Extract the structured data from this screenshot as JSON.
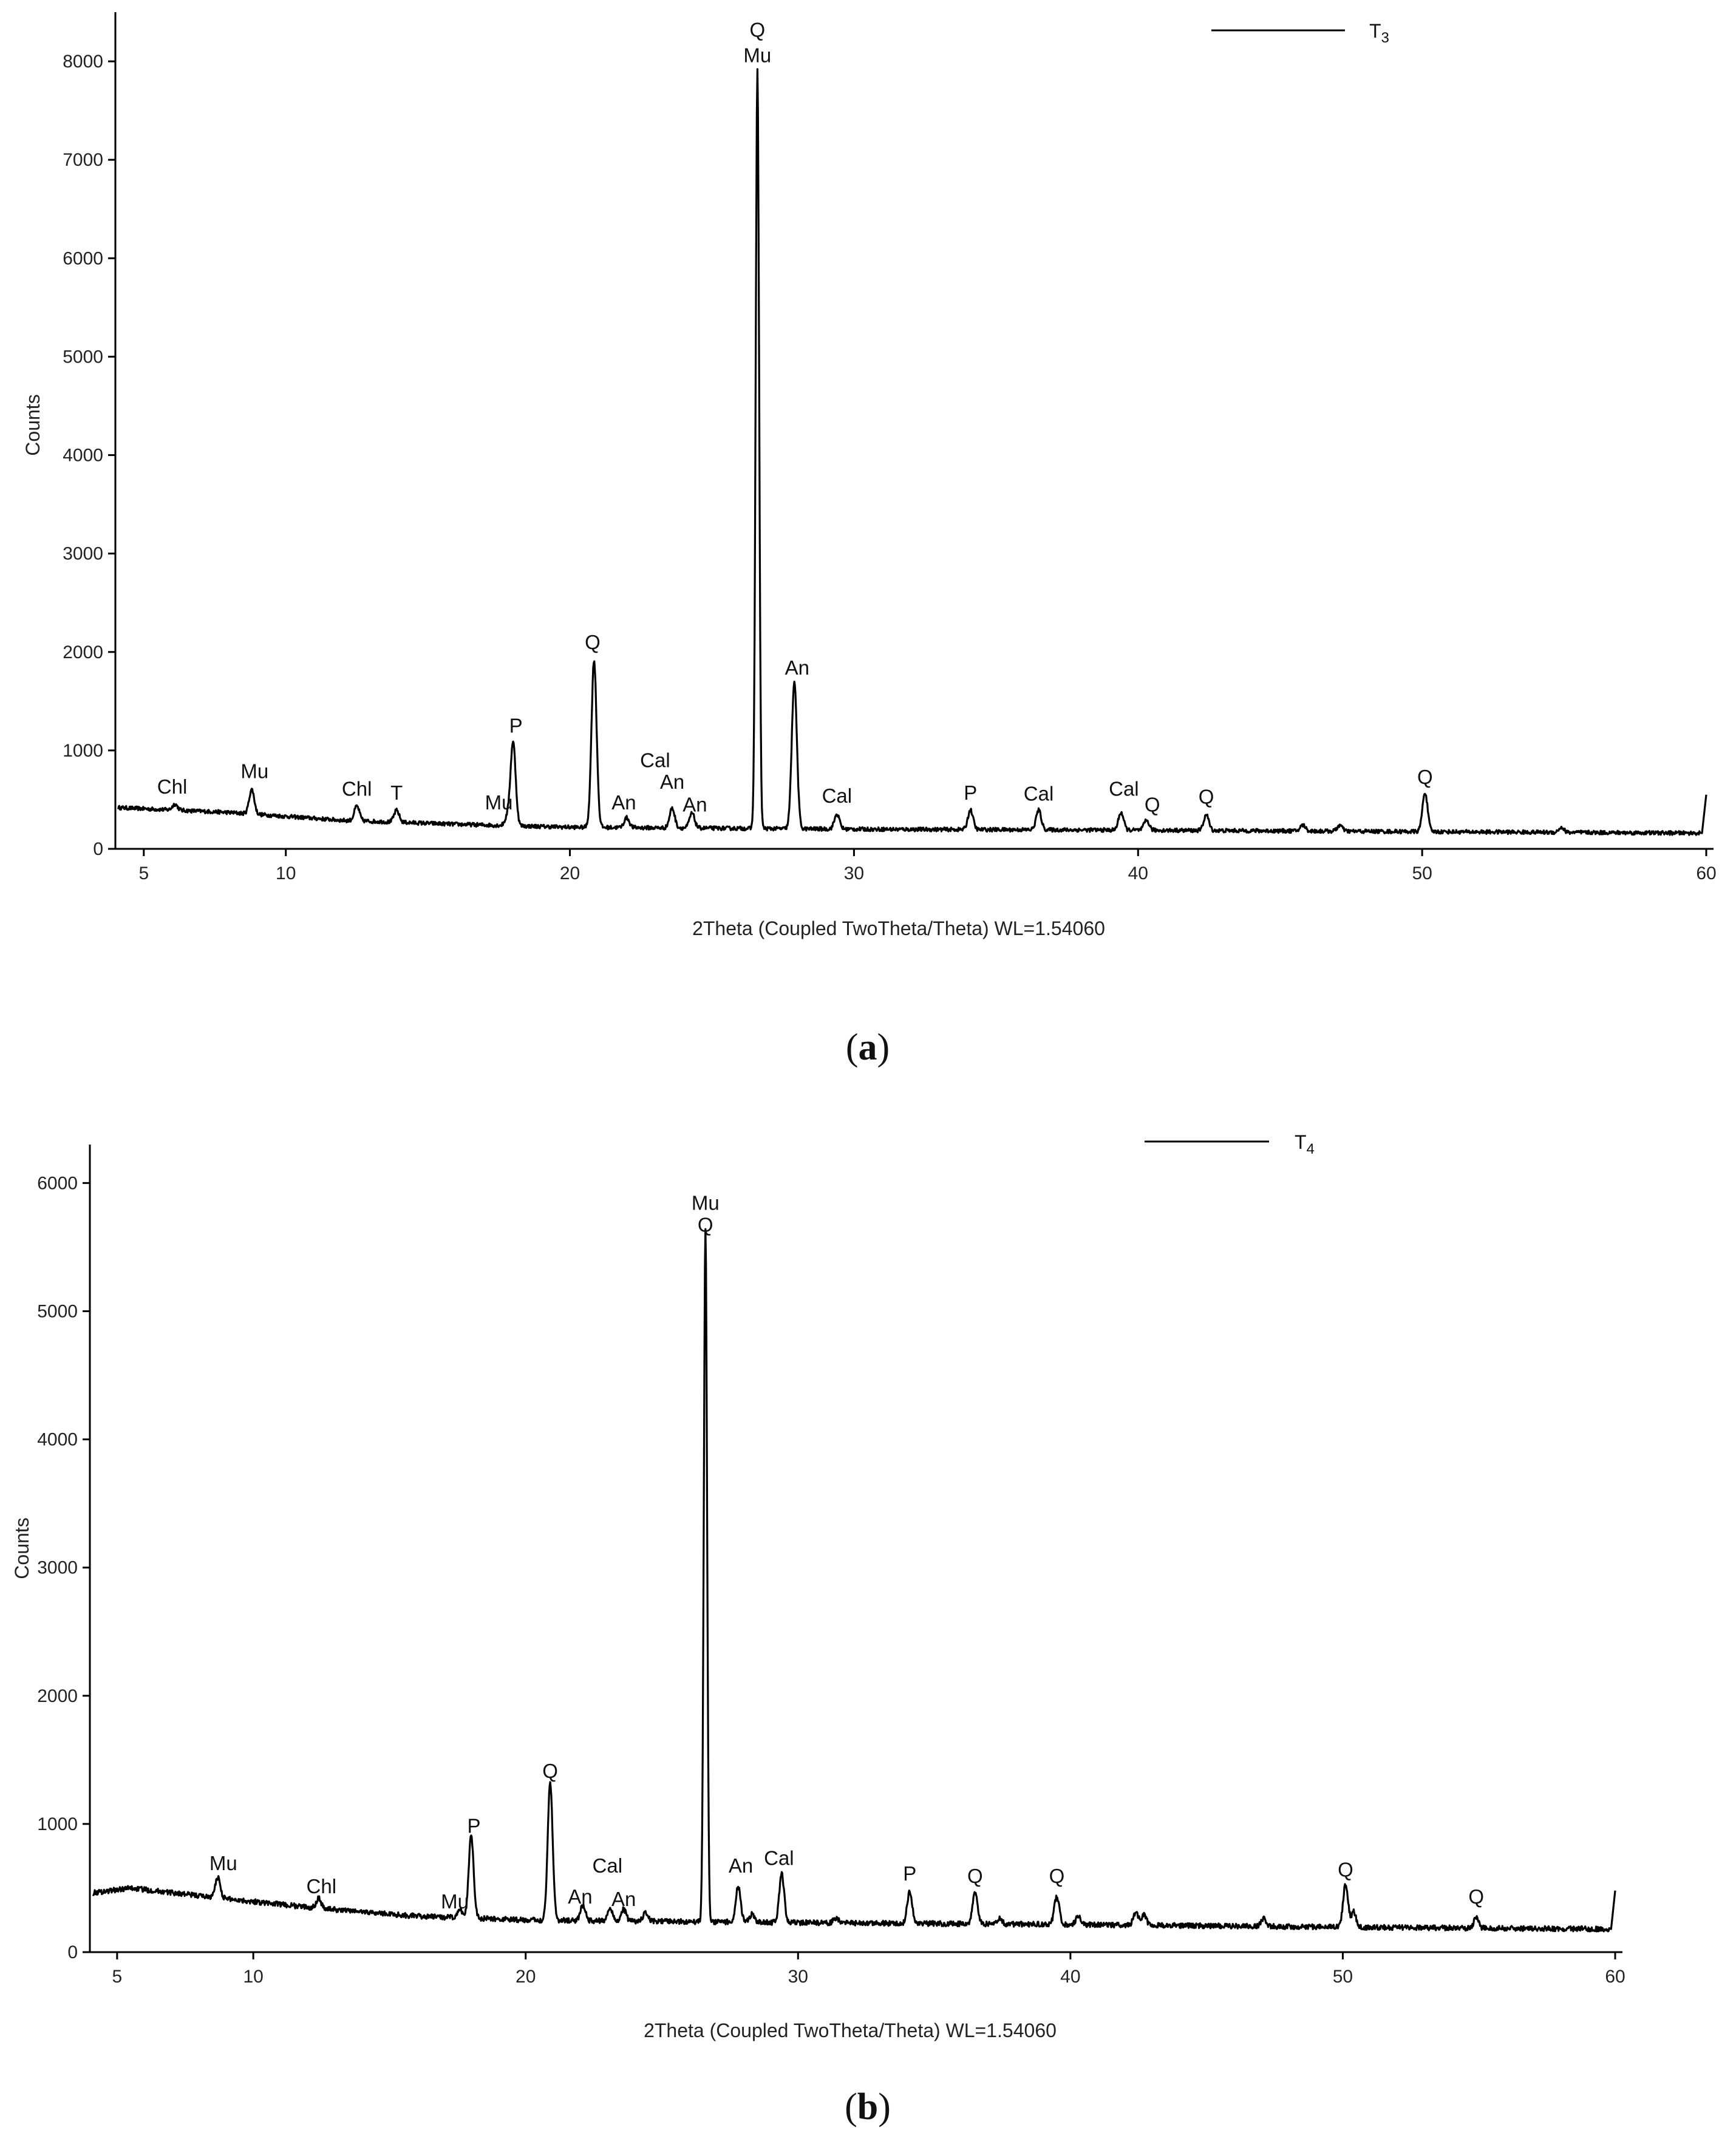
{
  "chart_data": [
    {
      "type": "line",
      "panel_label": "(a)",
      "panel_letter": "a",
      "xlabel": "2Theta (Coupled TwoTheta/Theta) WL=1.54060",
      "ylabel": "Counts",
      "xlim": [
        4,
        60
      ],
      "ylim": [
        0,
        8500
      ],
      "xticks": [
        5,
        10,
        20,
        30,
        40,
        50,
        60
      ],
      "yticks": [
        0,
        1000,
        2000,
        3000,
        4000,
        5000,
        6000,
        7000,
        8000
      ],
      "legend": {
        "name": "T",
        "subscript": "3",
        "placement": "top-right"
      },
      "series": [
        {
          "name": "T3",
          "baseline": [
            [
              4,
              420
            ],
            [
              8,
              370
            ],
            [
              12,
              290
            ],
            [
              16,
              250
            ],
            [
              20,
              220
            ],
            [
              30,
              200
            ],
            [
              40,
              190
            ],
            [
              50,
              175
            ],
            [
              59.8,
              160
            ]
          ],
          "peaks": [
            [
              6.1,
              60
            ],
            [
              8.8,
              250
            ],
            [
              12.5,
              150
            ],
            [
              13.9,
              120
            ],
            [
              17.8,
              80
            ],
            [
              18.0,
              850
            ],
            [
              20.85,
              1700
            ],
            [
              22.0,
              100
            ],
            [
              23.6,
              200
            ],
            [
              24.3,
              150
            ],
            [
              26.6,
              7700
            ],
            [
              27.9,
              1500
            ],
            [
              29.4,
              150
            ],
            [
              34.1,
              200
            ],
            [
              36.5,
              200
            ],
            [
              39.4,
              180
            ],
            [
              40.3,
              100
            ],
            [
              42.4,
              160
            ],
            [
              45.8,
              60
            ],
            [
              47.1,
              60
            ],
            [
              50.1,
              400
            ],
            [
              54.9,
              50
            ]
          ],
          "end_rise": [
            60,
            550
          ]
        }
      ],
      "annotations": [
        {
          "text": "Chl",
          "x": 6.0,
          "y": 560
        },
        {
          "text": "Mu",
          "x": 8.9,
          "y": 720
        },
        {
          "text": "Chl",
          "x": 12.5,
          "y": 540
        },
        {
          "text": "T",
          "x": 13.9,
          "y": 500
        },
        {
          "text": "Mu",
          "x": 17.5,
          "y": 400
        },
        {
          "text": "P",
          "x": 18.1,
          "y": 1180
        },
        {
          "text": "Q",
          "x": 20.8,
          "y": 2030
        },
        {
          "text": "An",
          "x": 21.9,
          "y": 400
        },
        {
          "text": "Cal",
          "x": 23.0,
          "y": 830
        },
        {
          "text": "An",
          "x": 23.6,
          "y": 610
        },
        {
          "text": "An",
          "x": 24.4,
          "y": 380
        },
        {
          "text": "Q",
          "x": 26.6,
          "y": 8250
        },
        {
          "text": "Mu",
          "x": 26.6,
          "y": 7990
        },
        {
          "text": "An",
          "x": 28.0,
          "y": 1770
        },
        {
          "text": "Cal",
          "x": 29.4,
          "y": 470
        },
        {
          "text": "P",
          "x": 34.1,
          "y": 500
        },
        {
          "text": "Cal",
          "x": 36.5,
          "y": 490
        },
        {
          "text": "Cal",
          "x": 39.5,
          "y": 540
        },
        {
          "text": "Q",
          "x": 40.5,
          "y": 380
        },
        {
          "text": "Q",
          "x": 42.4,
          "y": 460
        },
        {
          "text": "Q",
          "x": 50.1,
          "y": 660
        }
      ]
    },
    {
      "type": "line",
      "panel_label": "(b)",
      "panel_letter": "b",
      "xlabel": "2Theta (Coupled TwoTheta/Theta) WL=1.54060",
      "ylabel": "Counts",
      "xlim": [
        4,
        60
      ],
      "ylim": [
        0,
        6300
      ],
      "xticks": [
        5,
        10,
        20,
        30,
        40,
        50,
        60
      ],
      "yticks": [
        0,
        1000,
        2000,
        3000,
        4000,
        5000,
        6000
      ],
      "legend": {
        "name": "T",
        "subscript": "4",
        "placement": "top-right"
      },
      "series": [
        {
          "name": "T4",
          "baseline": [
            [
              4,
              460
            ],
            [
              5.5,
              500
            ],
            [
              8,
              440
            ],
            [
              12,
              350
            ],
            [
              16,
              280
            ],
            [
              20,
              250
            ],
            [
              30,
              230
            ],
            [
              40,
              215
            ],
            [
              50,
              195
            ],
            [
              59.8,
              180
            ]
          ],
          "peaks": [
            [
              8.7,
              160
            ],
            [
              12.4,
              80
            ],
            [
              17.6,
              60
            ],
            [
              18.0,
              650
            ],
            [
              20.9,
              1080
            ],
            [
              22.1,
              120
            ],
            [
              23.1,
              100
            ],
            [
              23.6,
              90
            ],
            [
              24.4,
              60
            ],
            [
              26.6,
              5400
            ],
            [
              27.8,
              280
            ],
            [
              28.3,
              60
            ],
            [
              29.4,
              380
            ],
            [
              31.4,
              40
            ],
            [
              34.1,
              250
            ],
            [
              36.5,
              250
            ],
            [
              37.4,
              40
            ],
            [
              39.5,
              220
            ],
            [
              40.3,
              70
            ],
            [
              42.4,
              100
            ],
            [
              42.7,
              80
            ],
            [
              47.1,
              60
            ],
            [
              50.1,
              330
            ],
            [
              50.4,
              120
            ],
            [
              54.9,
              80
            ]
          ],
          "end_rise": [
            60,
            480
          ]
        }
      ],
      "annotations": [
        {
          "text": "Mu",
          "x": 8.9,
          "y": 640
        },
        {
          "text": "Chl",
          "x": 12.5,
          "y": 460
        },
        {
          "text": "Mu",
          "x": 17.4,
          "y": 340
        },
        {
          "text": "P",
          "x": 18.1,
          "y": 930
        },
        {
          "text": "Q",
          "x": 20.9,
          "y": 1360
        },
        {
          "text": "An",
          "x": 22.0,
          "y": 380
        },
        {
          "text": "Cal",
          "x": 23.0,
          "y": 620
        },
        {
          "text": "An",
          "x": 23.6,
          "y": 360
        },
        {
          "text": "Mu",
          "x": 26.6,
          "y": 5790
        },
        {
          "text": "Q",
          "x": 26.6,
          "y": 5620
        },
        {
          "text": "An",
          "x": 27.9,
          "y": 620
        },
        {
          "text": "Cal",
          "x": 29.3,
          "y": 680
        },
        {
          "text": "P",
          "x": 34.1,
          "y": 560
        },
        {
          "text": "Q",
          "x": 36.5,
          "y": 540
        },
        {
          "text": "Q",
          "x": 39.5,
          "y": 540
        },
        {
          "text": "Q",
          "x": 50.1,
          "y": 590
        },
        {
          "text": "Q",
          "x": 54.9,
          "y": 380
        }
      ]
    }
  ]
}
